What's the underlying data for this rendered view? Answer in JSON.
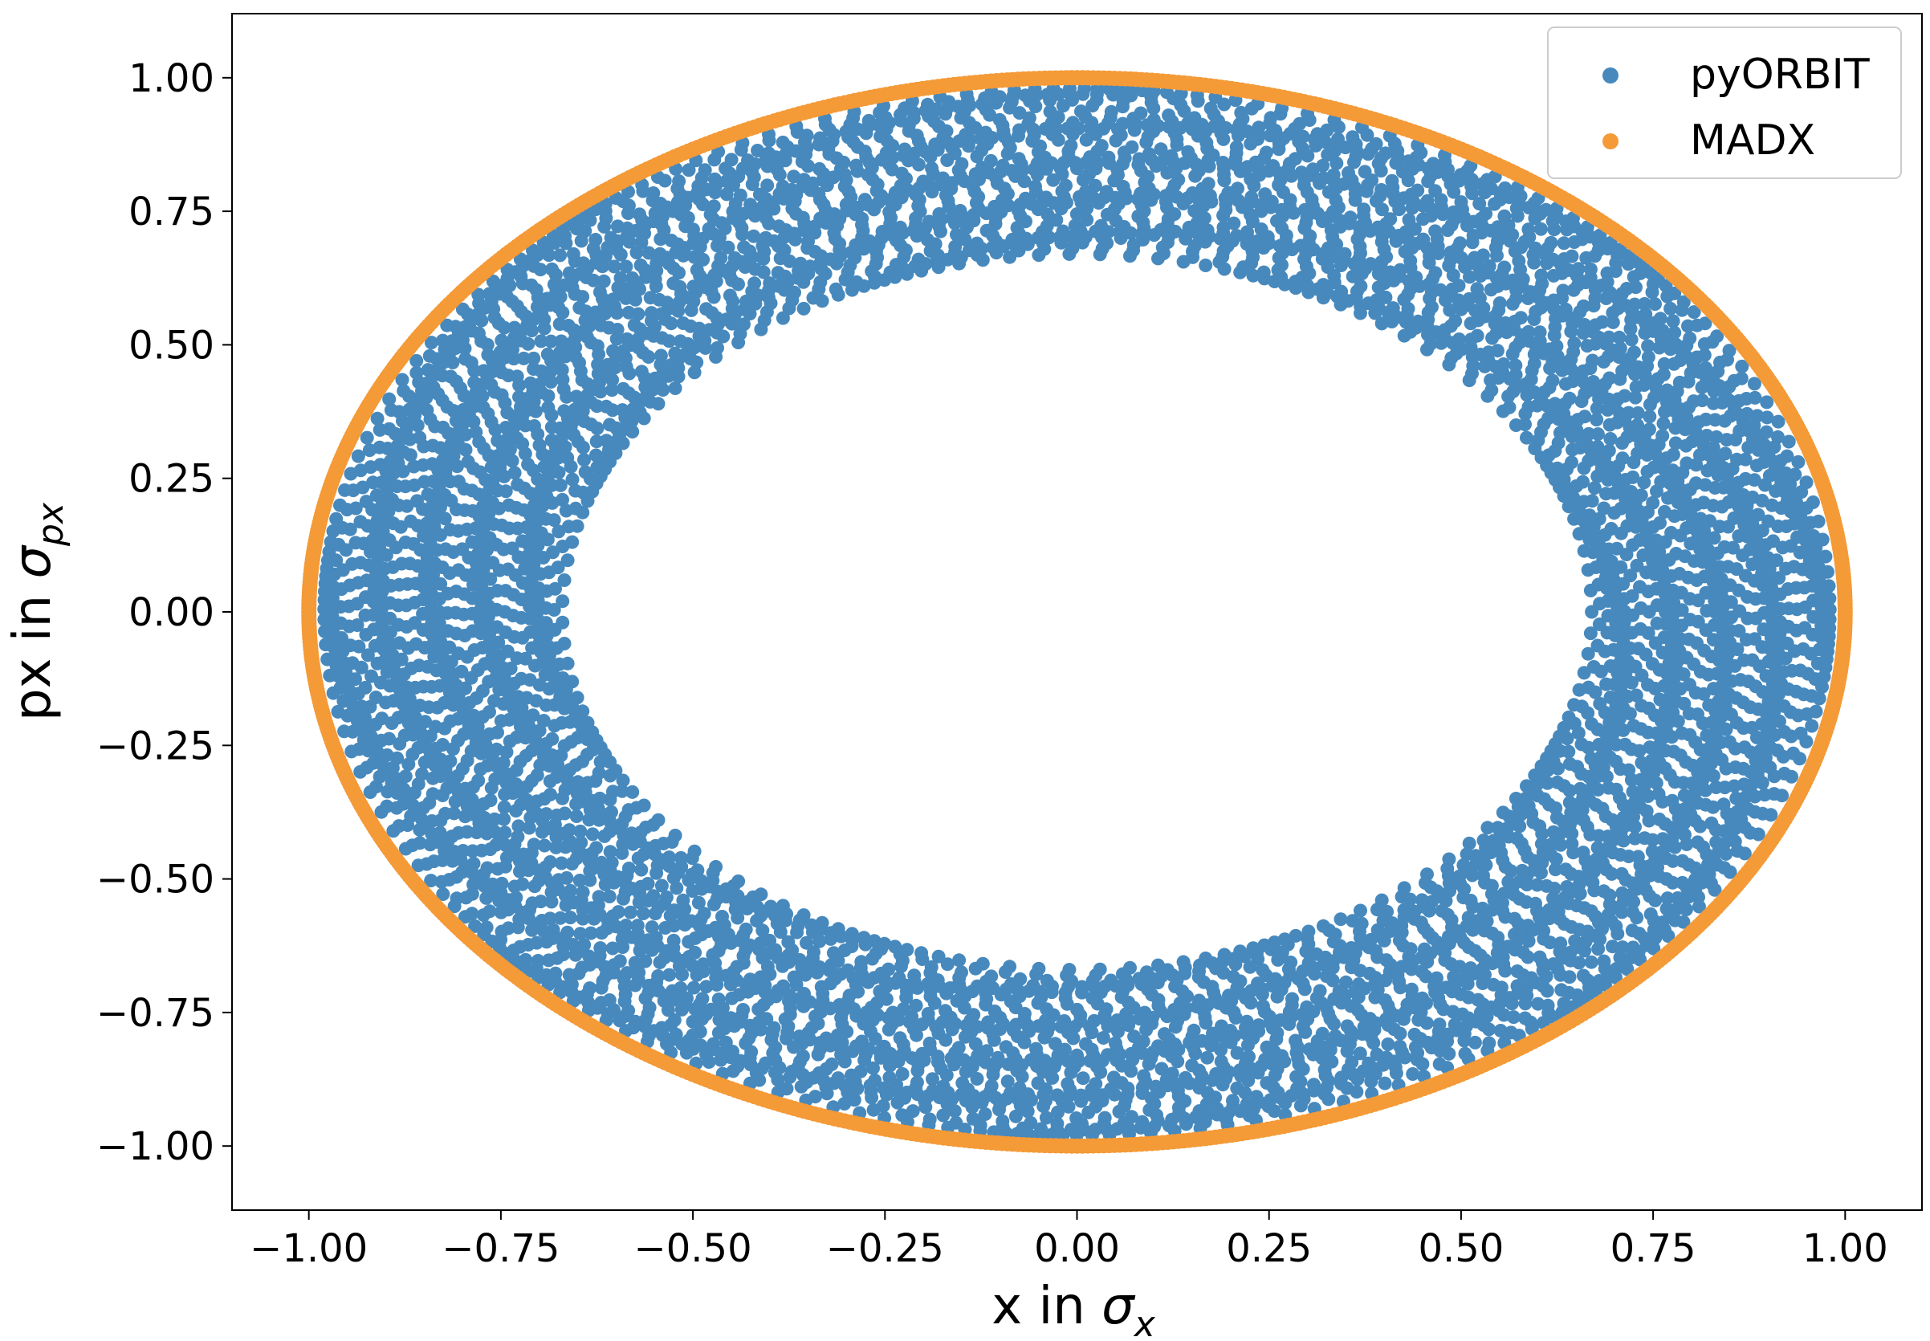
{
  "chart_data": {
    "type": "scatter",
    "title": "",
    "xlabel": {
      "text": "x in ",
      "symbol": "σ",
      "sub": "x"
    },
    "ylabel": {
      "text": "px in ",
      "symbol": "σ",
      "sub": "px"
    },
    "xlim": [
      -1.1,
      1.1
    ],
    "ylim": [
      -1.12,
      1.12
    ],
    "xticks": [
      -1.0,
      -0.75,
      -0.5,
      -0.25,
      0.0,
      0.25,
      0.5,
      0.75,
      1.0
    ],
    "xtick_labels": [
      "−1.00",
      "−0.75",
      "−0.50",
      "−0.25",
      "0.00",
      "0.25",
      "0.50",
      "0.75",
      "1.00"
    ],
    "yticks": [
      1.0,
      0.75,
      0.5,
      0.25,
      0.0,
      -0.25,
      -0.5,
      -0.75,
      -1.0
    ],
    "ytick_labels": [
      "1.00",
      "0.75",
      "0.50",
      "0.25",
      "0.00",
      "−0.25",
      "−0.50",
      "−0.75",
      "−1.00"
    ],
    "grid": false,
    "legend_position": "top-right",
    "series": [
      {
        "name": "pyORBIT",
        "color": "#4789bd",
        "shape": "filled annulus of points",
        "inner_radius": 0.67,
        "outer_radius": 0.98,
        "center": [
          0,
          0
        ]
      },
      {
        "name": "MADX",
        "color": "#f49a37",
        "shape": "ring of points",
        "radius": 1.0,
        "center": [
          0,
          0
        ]
      }
    ]
  }
}
